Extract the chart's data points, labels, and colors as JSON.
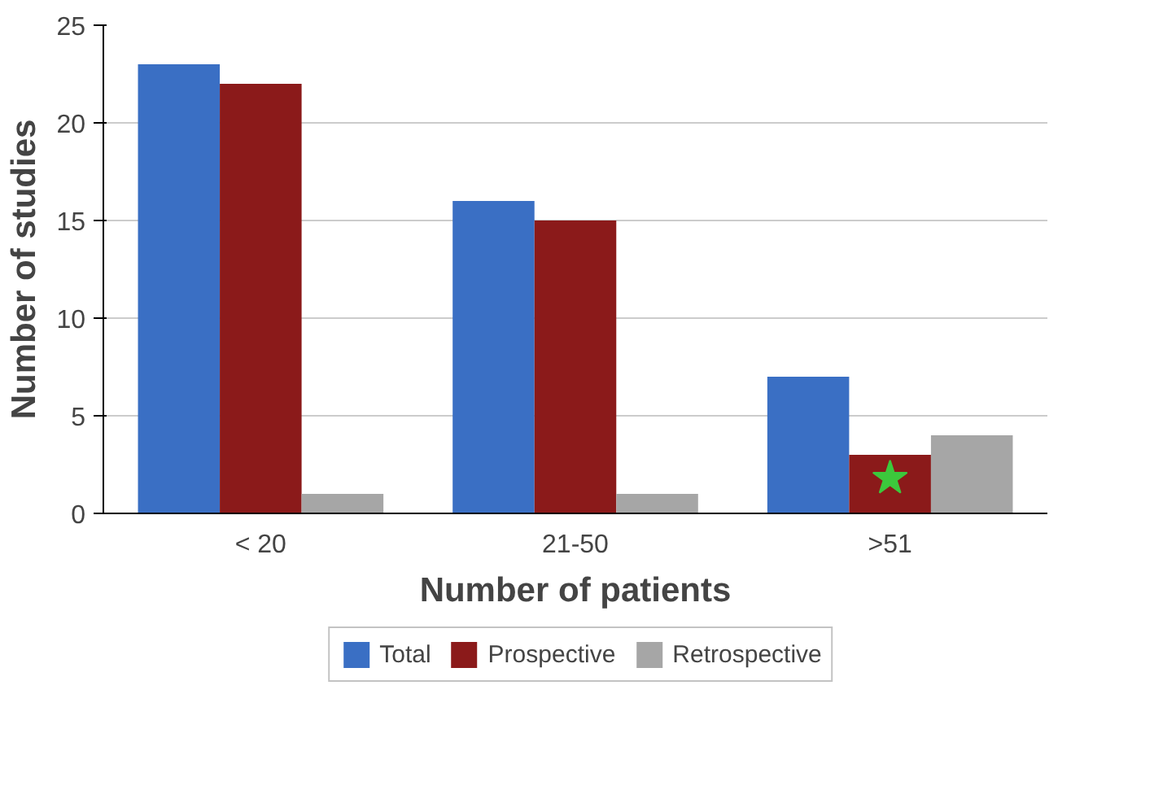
{
  "chart_data": {
    "type": "bar",
    "xlabel": "Number of patients",
    "ylabel": "Number of studies",
    "categories": [
      "< 20",
      "21-50",
      ">51"
    ],
    "series": [
      {
        "name": "Total",
        "color": "#3a6fc4",
        "values": [
          23,
          16,
          7
        ]
      },
      {
        "name": "Prospective",
        "color": "#8b1a1a",
        "values": [
          22,
          15,
          3
        ]
      },
      {
        "name": "Retrospective",
        "color": "#a6a6a6",
        "values": [
          1,
          1,
          4
        ]
      },
      {
        "type": "scatter",
        "marker": "star",
        "color": "#3cc83c",
        "x": [
          ">51"
        ],
        "values": [
          1.8
        ]
      }
    ],
    "ylim": [
      0,
      25
    ],
    "yticks": [
      0,
      5,
      10,
      15,
      20,
      25
    ],
    "grid": "y",
    "legend": "bottom"
  }
}
